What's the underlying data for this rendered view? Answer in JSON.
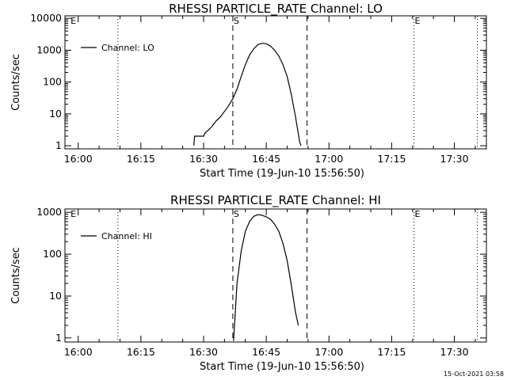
{
  "chart_data": [
    {
      "type": "line",
      "title": "RHESSI PARTICLE_RATE Channel: LO",
      "xlabel": "Start Time (19-Jun-10 15:56:50)",
      "ylabel": "Counts/sec",
      "y_scale": "log",
      "ylim": [
        0.8,
        12000
      ],
      "xlim": [
        "15:56:50",
        "17:37:40"
      ],
      "x_tick_labels": [
        "16:00",
        "16:15",
        "16:30",
        "16:45",
        "17:00",
        "17:15",
        "17:30"
      ],
      "y_tick_labels": [
        "1",
        "10",
        "100",
        "1000",
        "10000"
      ],
      "legend": {
        "entries": [
          "Channel: LO"
        ],
        "placement": "top-left"
      },
      "markers": [
        {
          "label": "S",
          "x": "16:37:00",
          "style": "dashed"
        },
        {
          "label": "",
          "x": "16:54:45",
          "style": "dashed"
        },
        {
          "label": "",
          "x": "16:09:30",
          "style": "dotted"
        },
        {
          "label": "E",
          "x": "17:20:20",
          "style": "dotted"
        },
        {
          "label": "",
          "x": "17:35:30",
          "style": "dotted"
        },
        {
          "label": "E",
          "x": "15:58:00",
          "style": "none"
        }
      ],
      "series": [
        {
          "name": "Channel: LO",
          "points": [
            [
              "16:27:40",
              1
            ],
            [
              "16:27:50",
              2
            ],
            [
              "16:30:00",
              2
            ],
            [
              "16:30:20",
              2.5
            ],
            [
              "16:31:00",
              3
            ],
            [
              "16:32:00",
              4
            ],
            [
              "16:33:00",
              6
            ],
            [
              "16:34:00",
              8
            ],
            [
              "16:35:00",
              12
            ],
            [
              "16:36:00",
              18
            ],
            [
              "16:37:00",
              30
            ],
            [
              "16:38:00",
              60
            ],
            [
              "16:39:00",
              150
            ],
            [
              "16:40:00",
              350
            ],
            [
              "16:41:00",
              700
            ],
            [
              "16:42:00",
              1100
            ],
            [
              "16:43:00",
              1500
            ],
            [
              "16:44:00",
              1650
            ],
            [
              "16:45:00",
              1600
            ],
            [
              "16:46:00",
              1350
            ],
            [
              "16:47:00",
              1000
            ],
            [
              "16:48:00",
              650
            ],
            [
              "16:49:00",
              350
            ],
            [
              "16:50:00",
              150
            ],
            [
              "16:51:00",
              40
            ],
            [
              "16:52:00",
              8
            ],
            [
              "16:53:00",
              1.3
            ],
            [
              "16:53:20",
              1
            ]
          ]
        }
      ]
    },
    {
      "type": "line",
      "title": "RHESSI PARTICLE_RATE Channel: HI",
      "xlabel": "Start Time (19-Jun-10 15:56:50)",
      "ylabel": "Counts/sec",
      "y_scale": "log",
      "ylim": [
        0.8,
        1200
      ],
      "xlim": [
        "15:56:50",
        "17:37:40"
      ],
      "x_tick_labels": [
        "16:00",
        "16:15",
        "16:30",
        "16:45",
        "17:00",
        "17:15",
        "17:30"
      ],
      "y_tick_labels": [
        "1",
        "10",
        "100",
        "1000"
      ],
      "legend": {
        "entries": [
          "Channel: HI"
        ],
        "placement": "top-left"
      },
      "markers": [
        {
          "label": "S",
          "x": "16:37:00",
          "style": "dashed"
        },
        {
          "label": "",
          "x": "16:54:45",
          "style": "dashed"
        },
        {
          "label": "",
          "x": "16:09:30",
          "style": "dotted"
        },
        {
          "label": "E",
          "x": "17:20:20",
          "style": "dotted"
        },
        {
          "label": "",
          "x": "17:35:30",
          "style": "dotted"
        },
        {
          "label": "E",
          "x": "15:58:00",
          "style": "none"
        }
      ],
      "series": [
        {
          "name": "Channel: HI",
          "points": [
            [
              "16:37:10",
              0.85
            ],
            [
              "16:37:30",
              3
            ],
            [
              "16:38:00",
              20
            ],
            [
              "16:39:00",
              120
            ],
            [
              "16:40:00",
              350
            ],
            [
              "16:41:00",
              600
            ],
            [
              "16:42:00",
              800
            ],
            [
              "16:43:00",
              880
            ],
            [
              "16:44:00",
              850
            ],
            [
              "16:45:00",
              780
            ],
            [
              "16:46:00",
              680
            ],
            [
              "16:47:00",
              520
            ],
            [
              "16:48:00",
              350
            ],
            [
              "16:49:00",
              180
            ],
            [
              "16:50:00",
              70
            ],
            [
              "16:51:00",
              18
            ],
            [
              "16:52:00",
              4
            ],
            [
              "16:52:40",
              2
            ]
          ]
        }
      ]
    }
  ],
  "timestamp": "15-Oct-2021 03:58"
}
